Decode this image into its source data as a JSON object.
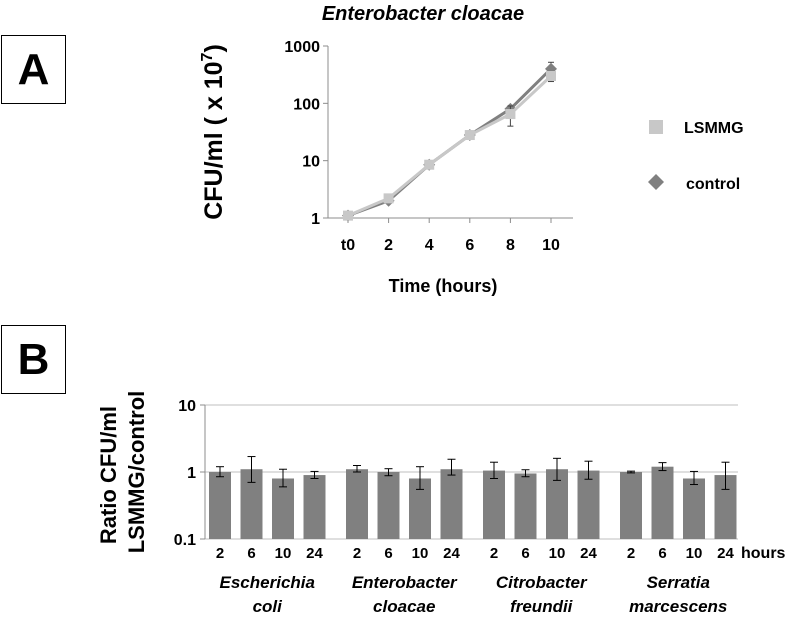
{
  "panels": {
    "a_label": "A",
    "b_label": "B"
  },
  "colors": {
    "lsmmg": "#c8c8c8",
    "control": "#808080",
    "bar": "#808080",
    "grid": "#bfbfbf",
    "axis": "#8c8c8c"
  },
  "chart_data": [
    {
      "type": "line",
      "title": "Enterobacter cloacae",
      "xlabel": "Time (hours)",
      "ylabel_main": "CFU/ml ( x 10",
      "ylabel_sup": "7",
      "ylabel_close": ")",
      "y_scale": "log",
      "ylim": [
        1,
        1000
      ],
      "y_ticks": [
        "1",
        "10",
        "100",
        "1000"
      ],
      "categories": [
        "t0",
        "2",
        "4",
        "6",
        "8",
        "10"
      ],
      "series": [
        {
          "name": "LSMMG",
          "marker": "square",
          "values": [
            1.1,
            2.2,
            8.5,
            28,
            65,
            300
          ],
          "err_low": [
            1.0,
            2.0,
            7.3,
            25,
            40,
            240
          ],
          "err_high": [
            1.2,
            2.4,
            9.8,
            31,
            90,
            360
          ]
        },
        {
          "name": "control",
          "marker": "diamond",
          "values": [
            1.1,
            2.0,
            8.5,
            28,
            80,
            400
          ],
          "err_low": [
            1.0,
            1.8,
            7.5,
            26,
            72,
            330
          ],
          "err_high": [
            1.2,
            2.2,
            9.5,
            30,
            88,
            520
          ]
        }
      ],
      "legend": "right"
    },
    {
      "type": "bar",
      "ylabel_line1": "Ratio CFU/ml",
      "ylabel_line2": "LSMMG/control",
      "y_scale": "log",
      "ylim": [
        0.1,
        10
      ],
      "y_ticks": [
        "0.1",
        "1",
        "10"
      ],
      "x_unit": "hours",
      "groups": [
        {
          "name_line1": "Escherichia",
          "name_line2": "coli",
          "hours": [
            "2",
            "6",
            "10",
            "24"
          ],
          "values": [
            1.0,
            1.1,
            0.8,
            0.9
          ],
          "err_low": [
            0.85,
            0.7,
            0.6,
            0.8
          ],
          "err_high": [
            1.2,
            1.7,
            1.1,
            1.02
          ]
        },
        {
          "name_line1": "Enterobacter",
          "name_line2": "cloacae",
          "hours": [
            "2",
            "6",
            "10",
            "24"
          ],
          "values": [
            1.1,
            1.0,
            0.8,
            1.1
          ],
          "err_low": [
            1.0,
            0.88,
            0.55,
            0.9
          ],
          "err_high": [
            1.25,
            1.12,
            1.2,
            1.55
          ]
        },
        {
          "name_line1": "Citrobacter",
          "name_line2": "freundii",
          "hours": [
            "2",
            "6",
            "10",
            "24"
          ],
          "values": [
            1.05,
            0.95,
            1.1,
            1.05
          ],
          "err_low": [
            0.8,
            0.85,
            0.75,
            0.78
          ],
          "err_high": [
            1.4,
            1.08,
            1.6,
            1.45
          ]
        },
        {
          "name_line1": "Serratia",
          "name_line2": "marcescens",
          "hours": [
            "2",
            "6",
            "10",
            "24"
          ],
          "values": [
            1.0,
            1.2,
            0.8,
            0.9
          ],
          "err_low": [
            0.97,
            1.05,
            0.65,
            0.55
          ],
          "err_high": [
            1.03,
            1.38,
            1.02,
            1.4
          ]
        }
      ]
    }
  ]
}
